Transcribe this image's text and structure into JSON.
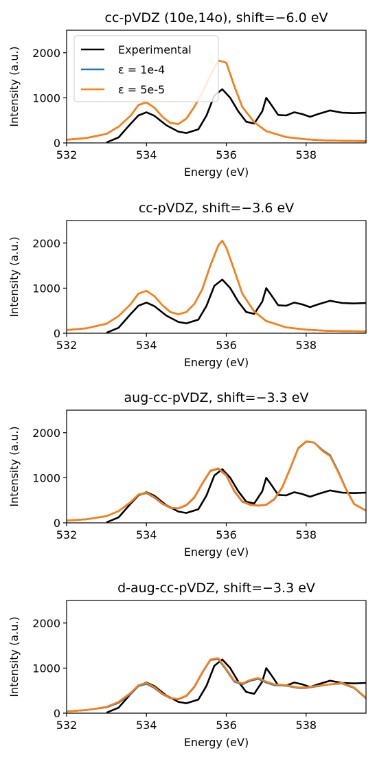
{
  "chart_data": [
    {
      "type": "line",
      "title": "cc-pVDZ (10e,14o), shift=−6.0 eV",
      "xlabel": "Energy (eV)",
      "ylabel": "Intensity (a.u.)",
      "xlim": [
        532,
        539.5
      ],
      "ylim": [
        0,
        2500
      ],
      "xticks": [
        "532",
        "534",
        "536",
        "538"
      ],
      "yticks": [
        "0",
        "1000",
        "2000"
      ],
      "legend": {
        "placement": "top-left",
        "entries": [
          "Experimental",
          "ε = 1e-4",
          "ε = 5e-5"
        ]
      },
      "series": [
        {
          "name": "Experimental",
          "color": "#000000",
          "x": [
            533.0,
            533.3,
            533.6,
            533.8,
            534.0,
            534.2,
            534.5,
            534.8,
            535.0,
            535.3,
            535.5,
            535.7,
            535.9,
            536.1,
            536.3,
            536.5,
            536.7,
            536.9,
            537.0,
            537.1,
            537.3,
            537.5,
            537.7,
            537.9,
            538.1,
            538.3,
            538.6,
            538.9,
            539.2,
            539.5
          ],
          "values": [
            10,
            120,
            420,
            610,
            680,
            600,
            390,
            250,
            220,
            300,
            600,
            1050,
            1190,
            1000,
            700,
            470,
            430,
            700,
            1000,
            880,
            620,
            610,
            680,
            640,
            580,
            640,
            720,
            670,
            660,
            670
          ]
        },
        {
          "name": "ε = 1e-4",
          "color": "#1f77b4",
          "x": [
            532.0,
            532.5,
            533.0,
            533.3,
            533.6,
            533.8,
            534.0,
            534.2,
            534.4,
            534.6,
            534.8,
            535.0,
            535.2,
            535.4,
            535.6,
            535.8,
            536.0,
            536.2,
            536.4,
            536.7,
            537.0,
            537.5,
            538.0,
            538.5,
            539.0,
            539.5
          ],
          "values": [
            70,
            110,
            200,
            360,
            600,
            840,
            900,
            780,
            580,
            440,
            420,
            540,
            800,
            1120,
            1500,
            1830,
            1780,
            1260,
            800,
            460,
            260,
            130,
            80,
            55,
            45,
            40
          ]
        },
        {
          "name": "ε = 5e-5",
          "color": "#ff7f0e",
          "x": [
            532.0,
            532.5,
            533.0,
            533.3,
            533.6,
            533.8,
            534.0,
            534.2,
            534.4,
            534.6,
            534.8,
            535.0,
            535.2,
            535.4,
            535.6,
            535.8,
            536.0,
            536.2,
            536.4,
            536.7,
            537.0,
            537.5,
            538.0,
            538.5,
            539.0,
            539.5
          ],
          "values": [
            70,
            110,
            200,
            360,
            600,
            840,
            900,
            780,
            580,
            440,
            420,
            540,
            800,
            1120,
            1500,
            1830,
            1780,
            1260,
            800,
            460,
            260,
            130,
            80,
            55,
            45,
            40
          ]
        }
      ]
    },
    {
      "type": "line",
      "title": "cc-pVDZ, shift=−3.6 eV",
      "xlabel": "Energy (eV)",
      "ylabel": "Intensity (a.u.)",
      "xlim": [
        532,
        539.5
      ],
      "ylim": [
        0,
        2500
      ],
      "xticks": [
        "532",
        "534",
        "536",
        "538"
      ],
      "yticks": [
        "0",
        "1000",
        "2000"
      ],
      "series": [
        {
          "name": "Experimental",
          "color": "#000000",
          "x": [
            533.0,
            533.3,
            533.6,
            533.8,
            534.0,
            534.2,
            534.5,
            534.8,
            535.0,
            535.3,
            535.5,
            535.7,
            535.9,
            536.1,
            536.3,
            536.5,
            536.7,
            536.9,
            537.0,
            537.1,
            537.3,
            537.5,
            537.7,
            537.9,
            538.1,
            538.3,
            538.6,
            538.9,
            539.2,
            539.5
          ],
          "values": [
            10,
            120,
            420,
            610,
            680,
            600,
            390,
            250,
            220,
            300,
            600,
            1050,
            1190,
            1000,
            700,
            470,
            430,
            700,
            1000,
            880,
            620,
            610,
            680,
            640,
            580,
            640,
            720,
            670,
            660,
            670
          ]
        },
        {
          "name": "ε = 1e-4",
          "color": "#1f77b4",
          "x": [
            532.0,
            532.5,
            533.0,
            533.3,
            533.6,
            533.8,
            534.0,
            534.2,
            534.4,
            534.6,
            534.8,
            535.0,
            535.2,
            535.4,
            535.6,
            535.8,
            535.9,
            536.0,
            536.2,
            536.4,
            536.7,
            537.0,
            537.5,
            538.0,
            538.5,
            539.0,
            539.5
          ],
          "values": [
            70,
            110,
            210,
            380,
            640,
            880,
            940,
            820,
            620,
            470,
            420,
            470,
            650,
            980,
            1500,
            1950,
            2050,
            1900,
            1400,
            880,
            480,
            270,
            130,
            80,
            55,
            45,
            40
          ]
        },
        {
          "name": "ε = 5e-5",
          "color": "#ff7f0e",
          "x": [
            532.0,
            532.5,
            533.0,
            533.3,
            533.6,
            533.8,
            534.0,
            534.2,
            534.4,
            534.6,
            534.8,
            535.0,
            535.2,
            535.4,
            535.6,
            535.8,
            535.9,
            536.0,
            536.2,
            536.4,
            536.7,
            537.0,
            537.5,
            538.0,
            538.5,
            539.0,
            539.5
          ],
          "values": [
            70,
            110,
            210,
            380,
            640,
            880,
            940,
            820,
            620,
            470,
            420,
            470,
            650,
            980,
            1500,
            1950,
            2050,
            1900,
            1400,
            880,
            480,
            270,
            130,
            80,
            55,
            45,
            40
          ]
        }
      ]
    },
    {
      "type": "line",
      "title": "aug-cc-pVDZ, shift=−3.3 eV",
      "xlabel": "Energy (eV)",
      "ylabel": "Intensity (a.u.)",
      "xlim": [
        532,
        539.5
      ],
      "ylim": [
        0,
        2500
      ],
      "xticks": [
        "532",
        "534",
        "536",
        "538"
      ],
      "yticks": [
        "0",
        "1000",
        "2000"
      ],
      "series": [
        {
          "name": "Experimental",
          "color": "#000000",
          "x": [
            533.0,
            533.3,
            533.6,
            533.8,
            534.0,
            534.2,
            534.5,
            534.8,
            535.0,
            535.3,
            535.5,
            535.7,
            535.9,
            536.1,
            536.3,
            536.5,
            536.7,
            536.9,
            537.0,
            537.1,
            537.3,
            537.5,
            537.7,
            537.9,
            538.1,
            538.3,
            538.6,
            538.9,
            539.2,
            539.5
          ],
          "values": [
            10,
            120,
            420,
            610,
            680,
            600,
            390,
            250,
            220,
            300,
            600,
            1050,
            1190,
            1000,
            700,
            470,
            430,
            700,
            1000,
            880,
            620,
            610,
            680,
            640,
            580,
            640,
            720,
            670,
            660,
            670
          ]
        },
        {
          "name": "ε = 1e-4",
          "color": "#1f77b4",
          "x": [
            532.0,
            532.5,
            533.0,
            533.3,
            533.6,
            533.8,
            534.0,
            534.2,
            534.4,
            534.6,
            534.8,
            535.0,
            535.2,
            535.4,
            535.6,
            535.8,
            536.0,
            536.2,
            536.4,
            536.6,
            536.8,
            537.0,
            537.2,
            537.4,
            537.6,
            537.8,
            538.0,
            538.2,
            538.4,
            538.6,
            538.8,
            539.0,
            539.2,
            539.5
          ],
          "values": [
            50,
            80,
            150,
            260,
            450,
            620,
            660,
            560,
            420,
            330,
            320,
            390,
            560,
            870,
            1150,
            1200,
            1050,
            700,
            470,
            400,
            380,
            400,
            520,
            780,
            1200,
            1650,
            1800,
            1780,
            1620,
            1500,
            1150,
            750,
            420,
            270
          ]
        },
        {
          "name": "ε = 5e-5",
          "color": "#ff7f0e",
          "x": [
            532.0,
            532.5,
            533.0,
            533.3,
            533.6,
            533.8,
            534.0,
            534.2,
            534.4,
            534.6,
            534.8,
            535.0,
            535.2,
            535.4,
            535.6,
            535.8,
            536.0,
            536.2,
            536.4,
            536.6,
            536.8,
            537.0,
            537.2,
            537.4,
            537.6,
            537.8,
            538.0,
            538.2,
            538.4,
            538.6,
            538.8,
            539.0,
            539.2,
            539.5
          ],
          "values": [
            50,
            80,
            150,
            260,
            460,
            630,
            670,
            570,
            430,
            335,
            325,
            400,
            570,
            880,
            1160,
            1210,
            1060,
            710,
            480,
            405,
            385,
            405,
            530,
            790,
            1210,
            1660,
            1810,
            1780,
            1600,
            1480,
            1130,
            740,
            415,
            270
          ]
        }
      ]
    },
    {
      "type": "line",
      "title": "d-aug-cc-pVDZ, shift=−3.3 eV",
      "xlabel": "Energy (eV)",
      "ylabel": "Intensity (a.u.)",
      "xlim": [
        532,
        539.5
      ],
      "ylim": [
        0,
        2500
      ],
      "xticks": [
        "532",
        "534",
        "536",
        "538"
      ],
      "yticks": [
        "0",
        "1000",
        "2000"
      ],
      "series": [
        {
          "name": "Experimental",
          "color": "#000000",
          "x": [
            533.0,
            533.3,
            533.6,
            533.8,
            534.0,
            534.2,
            534.5,
            534.8,
            535.0,
            535.3,
            535.5,
            535.7,
            535.9,
            536.1,
            536.3,
            536.5,
            536.7,
            536.9,
            537.0,
            537.1,
            537.3,
            537.5,
            537.7,
            537.9,
            538.1,
            538.3,
            538.6,
            538.9,
            539.2,
            539.5
          ],
          "values": [
            10,
            120,
            420,
            610,
            680,
            600,
            390,
            250,
            220,
            300,
            600,
            1050,
            1190,
            1000,
            700,
            470,
            430,
            700,
            1000,
            880,
            620,
            610,
            680,
            640,
            580,
            640,
            720,
            670,
            660,
            670
          ]
        },
        {
          "name": "ε = 1e-4",
          "color": "#1f77b4",
          "x": [
            532.0,
            532.5,
            533.0,
            533.3,
            533.6,
            533.8,
            534.0,
            534.2,
            534.4,
            534.6,
            534.8,
            535.0,
            535.2,
            535.4,
            535.6,
            535.8,
            536.0,
            536.2,
            536.4,
            536.6,
            536.8,
            537.0,
            537.2,
            537.5,
            537.8,
            538.0,
            538.3,
            538.6,
            538.9,
            539.2,
            539.5
          ],
          "values": [
            40,
            70,
            130,
            230,
            420,
            600,
            650,
            560,
            420,
            330,
            310,
            380,
            580,
            900,
            1180,
            1200,
            960,
            700,
            640,
            720,
            760,
            680,
            620,
            610,
            560,
            560,
            600,
            640,
            660,
            560,
            330
          ]
        },
        {
          "name": "ε = 5e-5",
          "color": "#ff7f0e",
          "x": [
            532.0,
            532.5,
            533.0,
            533.3,
            533.6,
            533.8,
            534.0,
            534.2,
            534.4,
            534.6,
            534.8,
            535.0,
            535.2,
            535.4,
            535.6,
            535.8,
            536.0,
            536.2,
            536.4,
            536.6,
            536.8,
            537.0,
            537.2,
            537.5,
            537.8,
            538.0,
            538.3,
            538.6,
            538.9,
            539.2,
            539.5
          ],
          "values": [
            40,
            70,
            140,
            250,
            450,
            620,
            670,
            580,
            430,
            335,
            315,
            390,
            590,
            910,
            1190,
            1220,
            980,
            720,
            660,
            740,
            780,
            700,
            640,
            620,
            570,
            570,
            610,
            640,
            670,
            570,
            340
          ]
        }
      ]
    }
  ]
}
